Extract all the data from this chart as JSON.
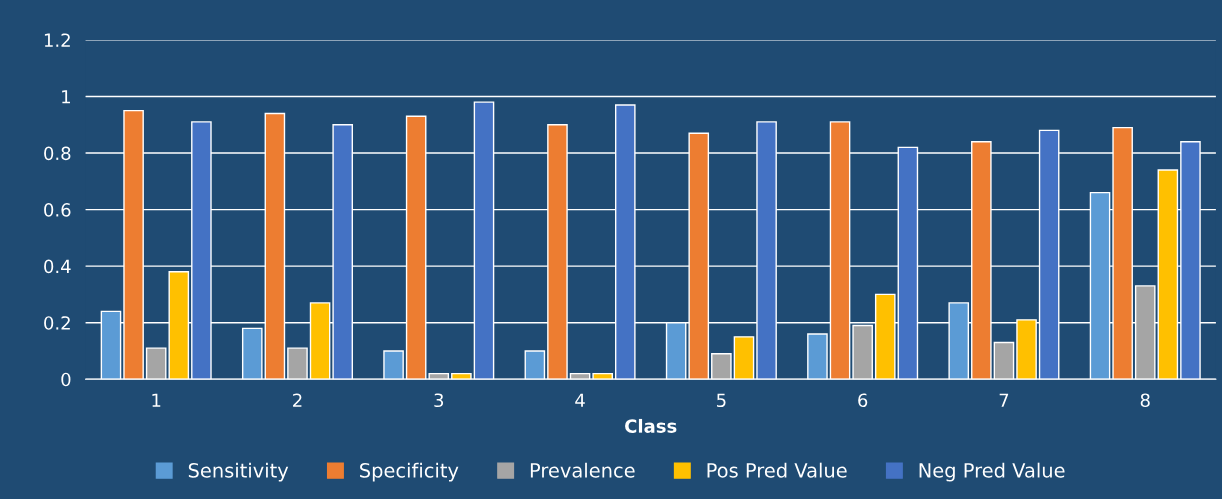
{
  "chart_data": {
    "type": "bar",
    "xlabel": "Class",
    "categories": [
      "1",
      "2",
      "3",
      "4",
      "5",
      "6",
      "7",
      "8"
    ],
    "series": [
      {
        "name": "Sensitivity",
        "color": "#5b9bd5",
        "values": [
          0.24,
          0.18,
          0.1,
          0.1,
          0.2,
          0.16,
          0.27,
          0.66
        ]
      },
      {
        "name": "Specificity",
        "color": "#ed7d31",
        "values": [
          0.95,
          0.94,
          0.93,
          0.9,
          0.87,
          0.91,
          0.84,
          0.89
        ]
      },
      {
        "name": "Prevalence",
        "color": "#a5a5a5",
        "values": [
          0.11,
          0.11,
          0.02,
          0.02,
          0.09,
          0.19,
          0.13,
          0.33
        ]
      },
      {
        "name": "Pos Pred Value",
        "color": "#ffc000",
        "values": [
          0.38,
          0.27,
          0.02,
          0.02,
          0.15,
          0.3,
          0.21,
          0.74
        ]
      },
      {
        "name": "Neg Pred Value",
        "color": "#4472c4",
        "values": [
          0.91,
          0.9,
          0.98,
          0.97,
          0.91,
          0.82,
          0.88,
          0.84
        ]
      }
    ],
    "ylim": [
      0,
      1.2
    ],
    "yticks": [
      0,
      0.2,
      0.4,
      0.6,
      0.8,
      1,
      1.2
    ],
    "grid": "y",
    "legend": "bottom"
  }
}
